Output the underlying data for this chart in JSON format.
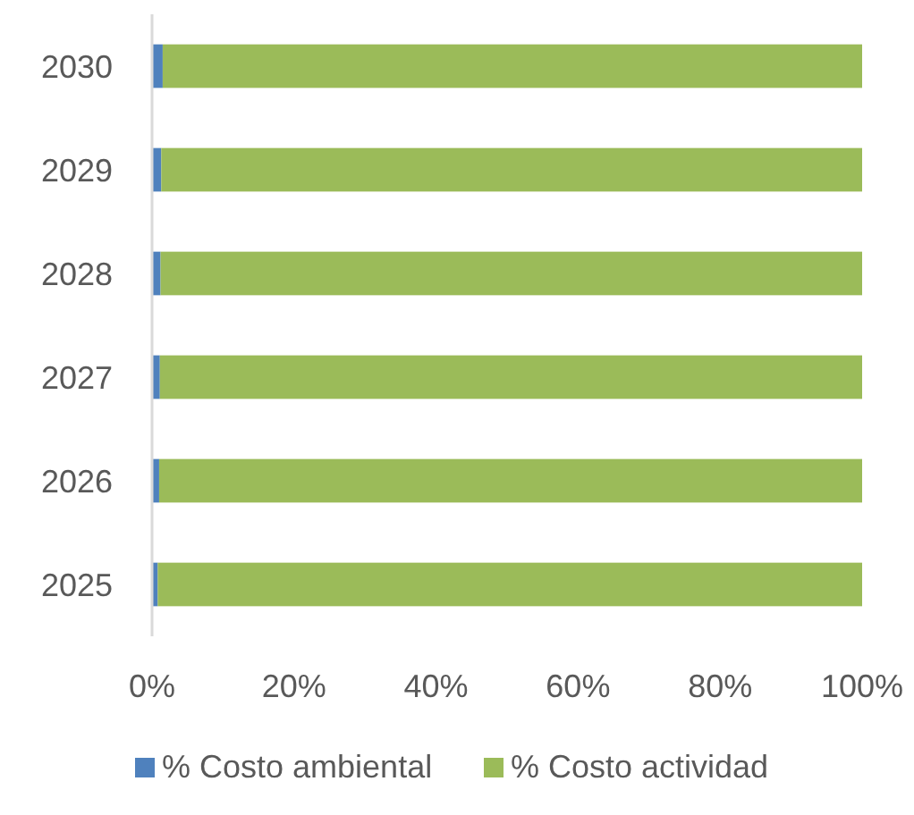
{
  "chart_data": {
    "type": "bar",
    "orientation": "horizontal",
    "stacked": true,
    "categories": [
      "2030",
      "2029",
      "2028",
      "2027",
      "2026",
      "2025"
    ],
    "series": [
      {
        "name": "% Costo ambiental",
        "color": "#4f81bd",
        "values": [
          1.5,
          1.3,
          1.2,
          1.1,
          1.0,
          0.8
        ]
      },
      {
        "name": "% Costo actividad",
        "color": "#9bbb59",
        "values": [
          98.5,
          98.7,
          98.8,
          98.9,
          99.0,
          99.2
        ]
      }
    ],
    "xlim": [
      0,
      100
    ],
    "xticks": [
      {
        "value": 0,
        "label": "0%"
      },
      {
        "value": 20,
        "label": "20%"
      },
      {
        "value": 40,
        "label": "40%"
      },
      {
        "value": 60,
        "label": "60%"
      },
      {
        "value": 80,
        "label": "80%"
      },
      {
        "value": 100,
        "label": "100%"
      }
    ],
    "grid": false,
    "legend": "bottom"
  }
}
